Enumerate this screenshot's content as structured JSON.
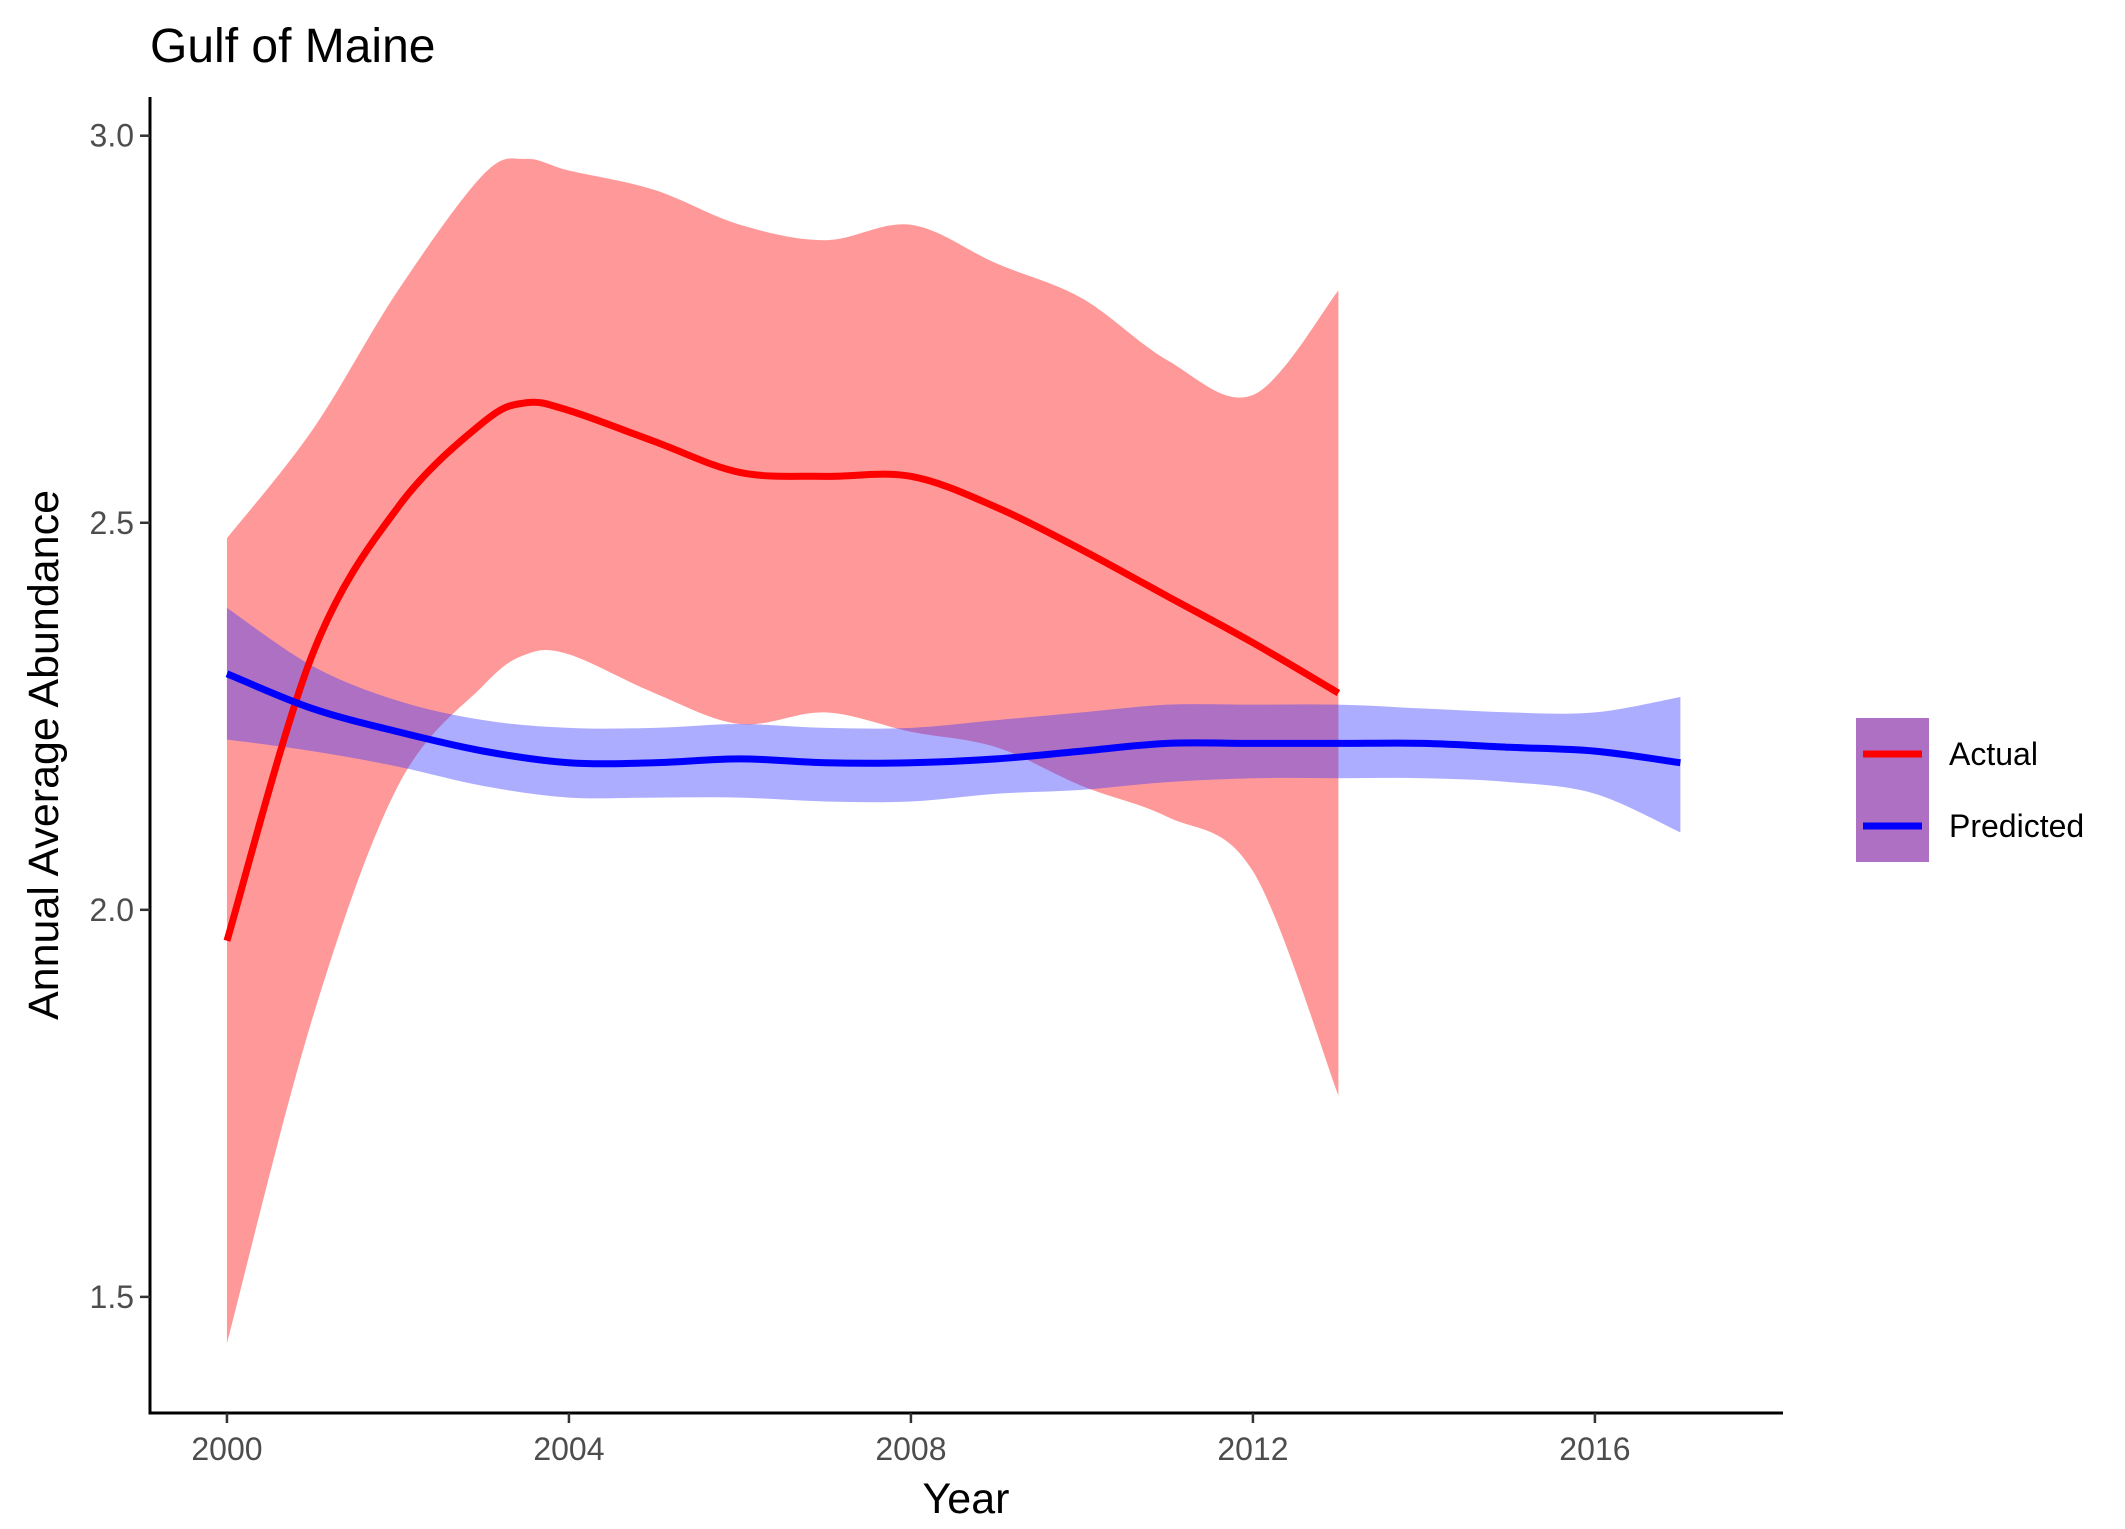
{
  "chart_data": {
    "type": "line",
    "title": "Gulf of Maine",
    "xlabel": "Year",
    "ylabel": "Annual Average Abundance",
    "xlim": [
      1999.1,
      2018.2
    ],
    "ylim": [
      1.35,
      3.05
    ],
    "x_ticks": [
      2000,
      2004,
      2008,
      2012,
      2016
    ],
    "y_ticks": [
      1.5,
      2.0,
      2.5,
      3.0
    ],
    "x_tick_labels": [
      "2000",
      "2004",
      "2008",
      "2012",
      "2016"
    ],
    "y_tick_labels": [
      "1.5",
      "2.0",
      "2.5",
      "3.0"
    ],
    "grid": false,
    "legend_position": "right",
    "series": [
      {
        "name": "Actual",
        "color": "#ff0000",
        "ribbon_color": "#ff0000",
        "points": [
          {
            "x": 2000,
            "y": 1.96,
            "lo": 1.44,
            "hi": 2.48
          },
          {
            "x": 2001,
            "y": 2.33,
            "lo": 1.86,
            "hi": 2.62
          },
          {
            "x": 2002,
            "y": 2.52,
            "lo": 2.16,
            "hi": 2.8
          },
          {
            "x": 2003,
            "y": 2.63,
            "lo": 2.29,
            "hi": 2.95
          },
          {
            "x": 2003.5,
            "y": 2.655,
            "lo": 2.33,
            "hi": 2.97
          },
          {
            "x": 2004,
            "y": 2.645,
            "lo": 2.33,
            "hi": 2.955
          },
          {
            "x": 2005,
            "y": 2.605,
            "lo": 2.28,
            "hi": 2.93
          },
          {
            "x": 2006,
            "y": 2.565,
            "lo": 2.24,
            "hi": 2.885
          },
          {
            "x": 2007,
            "y": 2.56,
            "lo": 2.255,
            "hi": 2.865
          },
          {
            "x": 2008,
            "y": 2.56,
            "lo": 2.23,
            "hi": 2.885
          },
          {
            "x": 2009,
            "y": 2.52,
            "lo": 2.21,
            "hi": 2.835
          },
          {
            "x": 2010,
            "y": 2.465,
            "lo": 2.16,
            "hi": 2.79
          },
          {
            "x": 2011,
            "y": 2.405,
            "lo": 2.12,
            "hi": 2.71
          },
          {
            "x": 2012,
            "y": 2.345,
            "lo": 2.05,
            "hi": 2.665
          },
          {
            "x": 2013,
            "y": 2.28,
            "lo": 1.76,
            "hi": 2.8
          }
        ]
      },
      {
        "name": "Predicted",
        "color": "#0000ff",
        "ribbon_color": "#3333ff",
        "points": [
          {
            "x": 2000,
            "y": 2.305,
            "lo": 2.22,
            "hi": 2.39
          },
          {
            "x": 2001,
            "y": 2.26,
            "lo": 2.205,
            "hi": 2.315
          },
          {
            "x": 2002,
            "y": 2.23,
            "lo": 2.185,
            "hi": 2.27
          },
          {
            "x": 2003,
            "y": 2.205,
            "lo": 2.16,
            "hi": 2.245
          },
          {
            "x": 2004,
            "y": 2.19,
            "lo": 2.145,
            "hi": 2.235
          },
          {
            "x": 2005,
            "y": 2.19,
            "lo": 2.145,
            "hi": 2.235
          },
          {
            "x": 2006,
            "y": 2.195,
            "lo": 2.145,
            "hi": 2.24
          },
          {
            "x": 2007,
            "y": 2.19,
            "lo": 2.14,
            "hi": 2.235
          },
          {
            "x": 2008,
            "y": 2.19,
            "lo": 2.14,
            "hi": 2.235
          },
          {
            "x": 2009,
            "y": 2.195,
            "lo": 2.15,
            "hi": 2.245
          },
          {
            "x": 2010,
            "y": 2.205,
            "lo": 2.155,
            "hi": 2.255
          },
          {
            "x": 2011,
            "y": 2.215,
            "lo": 2.165,
            "hi": 2.265
          },
          {
            "x": 2012,
            "y": 2.215,
            "lo": 2.17,
            "hi": 2.265
          },
          {
            "x": 2013,
            "y": 2.215,
            "lo": 2.17,
            "hi": 2.265
          },
          {
            "x": 2014,
            "y": 2.215,
            "lo": 2.17,
            "hi": 2.26
          },
          {
            "x": 2015,
            "y": 2.21,
            "lo": 2.165,
            "hi": 2.255
          },
          {
            "x": 2016,
            "y": 2.205,
            "lo": 2.15,
            "hi": 2.255
          },
          {
            "x": 2017,
            "y": 2.19,
            "lo": 2.1,
            "hi": 2.275
          }
        ]
      }
    ]
  }
}
